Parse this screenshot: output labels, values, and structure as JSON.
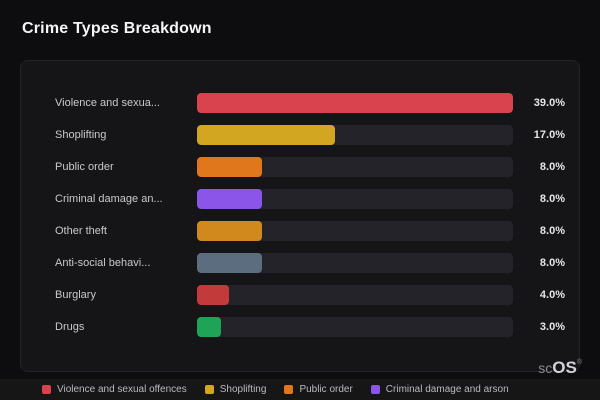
{
  "title": "Crime Types Breakdown",
  "watermark": {
    "prefix": "sc",
    "strong": "OS",
    "reg": "®"
  },
  "chart_data": {
    "type": "bar",
    "orientation": "horizontal",
    "title": "Crime Types Breakdown",
    "xlabel": "",
    "ylabel": "",
    "max_value": 39.0,
    "grid": false,
    "legend_position": "bottom",
    "categories": [
      "Violence and sexua...",
      "Shoplifting",
      "Public order",
      "Criminal damage an...",
      "Other theft",
      "Anti-social behavi...",
      "Burglary",
      "Drugs"
    ],
    "values": [
      39.0,
      17.0,
      8.0,
      8.0,
      8.0,
      8.0,
      4.0,
      3.0
    ],
    "value_labels": [
      "39.0%",
      "17.0%",
      "8.0%",
      "8.0%",
      "8.0%",
      "8.0%",
      "4.0%",
      "3.0%"
    ],
    "bar_colors": [
      "#d8434e",
      "#d3a622",
      "#e0771d",
      "#8a55e8",
      "#d1891d",
      "#5c6d80",
      "#c23a3a",
      "#1fa457"
    ],
    "legend": [
      {
        "label": "Violence and sexual offences",
        "color": "#d8434e"
      },
      {
        "label": "Shoplifting",
        "color": "#d3a622"
      },
      {
        "label": "Public order",
        "color": "#e0771d"
      },
      {
        "label": "Criminal damage and arson",
        "color": "#8a55e8"
      }
    ]
  }
}
